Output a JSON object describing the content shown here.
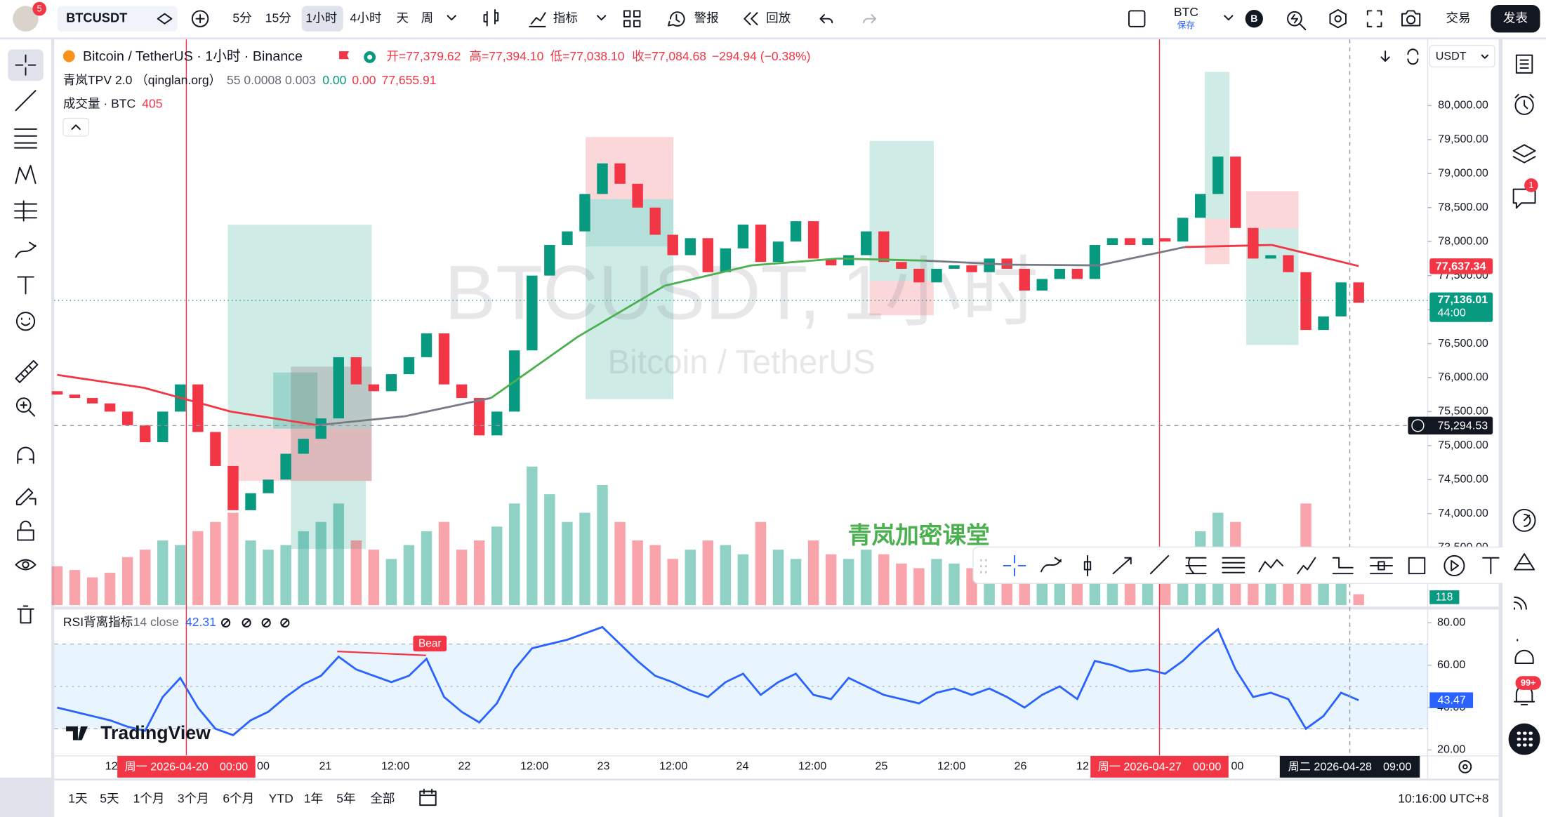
{
  "top_bar": {
    "avatar_badge": "5",
    "symbol": "BTCUSDT",
    "intervals": [
      "5分",
      "15分",
      "1小时",
      "4小时",
      "天",
      "周"
    ],
    "indicators": "指标",
    "alerts": "警报",
    "replay": "回放",
    "save_name": "BTC",
    "save_status": "保存",
    "account_badge": "B",
    "trade": "交易",
    "publish": "发表"
  },
  "legend": {
    "symbol": "Bitcoin / TetherUS · 1小时 · Binance",
    "ohlc": [
      "开=77,379.62",
      "高=77,394.10",
      "低=77,038.10",
      "收=77,084.68",
      "−294.94 (−0.38%)"
    ],
    "indicator": "青岚TPV 2.0 （qinglan.org）",
    "indicator_params": "55 0.0008 0.003",
    "indicator_values": [
      "0.00",
      "0.00",
      "77,655.91"
    ],
    "volume": "成交量 · BTC",
    "volume_value": "405"
  },
  "chart_controls": {
    "currency": "USDT"
  },
  "watermark": {
    "title": "BTCUSDT, 1小时",
    "subtitle": "Bitcoin / TetherUS"
  },
  "annotation": "青岚加密课堂",
  "chart_data": {
    "type": "candlestick",
    "open": 75800,
    "close": [
      75750,
      75700,
      75620,
      75500,
      75300,
      75050,
      75500,
      75900,
      75200,
      74700,
      74050,
      74300,
      74500,
      74880,
      75100,
      75400,
      76300,
      75900,
      75800,
      76050,
      76300,
      76650,
      75900,
      75700,
      75150,
      75500,
      76400,
      77500,
      77950,
      78150,
      78700,
      79150,
      78850,
      78500,
      78100,
      77800,
      78050,
      77550,
      77900,
      78250,
      77700,
      78000,
      78300,
      77750,
      77650,
      77800,
      78150,
      77700,
      77600,
      77400,
      77600,
      77650,
      77550,
      77750,
      77600,
      77280,
      77450,
      77600,
      77450,
      77950,
      78050,
      77950,
      78050,
      78000,
      78350,
      78700,
      79250,
      78200,
      77750,
      77800,
      77550,
      76700,
      76900,
      77400,
      77100
    ],
    "up_color": "#089981",
    "down_color": "#f23645",
    "ylim": [
      72640,
      80900
    ],
    "yticks": [
      {
        "value": 73500,
        "label": "73,500.00"
      },
      {
        "value": 74000,
        "label": "74,000.00"
      },
      {
        "value": 74500,
        "label": "74,500.00"
      },
      {
        "value": 75000,
        "label": "75,000.00"
      },
      {
        "value": 75500,
        "label": "75,500.00"
      },
      {
        "value": 76000,
        "label": "76,000.00"
      },
      {
        "value": 76500,
        "label": "76,500.00"
      },
      {
        "value": 77000,
        "label": "77,000.00"
      },
      {
        "value": 77500,
        "label": "77,500.00"
      },
      {
        "value": 78000,
        "label": "78,000.00"
      },
      {
        "value": 78500,
        "label": "78,500.00"
      },
      {
        "value": 79000,
        "label": "79,000.00"
      },
      {
        "value": 79500,
        "label": "79,500.00"
      },
      {
        "value": 80000,
        "label": "80,000.00"
      }
    ],
    "ma": {
      "values": [
        76040,
        75850,
        75500,
        75300,
        75430,
        75700,
        76600,
        77350,
        77650,
        77750,
        77720,
        77660,
        77650,
        77920,
        77950,
        77640
      ],
      "colors": [
        "#f23645",
        "#f23645",
        "#f23645",
        "#787b86",
        "#787b86",
        "#4caf50",
        "#4caf50",
        "#4caf50",
        "#4caf50",
        "#4caf50",
        "#787b86",
        "#787b86",
        "#787b86",
        "#f23645",
        "#f23645"
      ]
    },
    "volume": [
      420,
      380,
      300,
      350,
      520,
      600,
      700,
      650,
      800,
      900,
      1000,
      700,
      600,
      650,
      800,
      900,
      1100,
      700,
      600,
      500,
      650,
      800,
      900,
      600,
      700,
      850,
      1100,
      1500,
      1200,
      900,
      1000,
      1300,
      900,
      700,
      650,
      500,
      600,
      700,
      650,
      550,
      900,
      600,
      500,
      700,
      550,
      500,
      600,
      550,
      450,
      400,
      500,
      450,
      400,
      420,
      380,
      500,
      420,
      380,
      450,
      600,
      500,
      450,
      420,
      400,
      550,
      800,
      1000,
      900,
      600,
      450,
      500,
      1100,
      600,
      450,
      118
    ],
    "volume_tag": {
      "value": 118,
      "label": "118"
    },
    "ma_tag": {
      "value": 77637.34,
      "label": "77,637.34"
    },
    "last_price_tag": {
      "value": 77136.01,
      "label": "77,136.01"
    },
    "countdown": "44:00",
    "crosshair_tag": {
      "value": 75294.53,
      "label": "75,294.53"
    },
    "rsi": {
      "title": "RSI背离指标",
      "params": "14 close",
      "value": "42.31",
      "color": "#2962ff",
      "band": [
        30,
        70
      ],
      "ylim": [
        15.8,
        86.5
      ],
      "yticks": [
        {
          "value": 80,
          "label": "80.00"
        },
        {
          "value": 60,
          "label": "60.00"
        },
        {
          "value": 40,
          "label": "40.00"
        },
        {
          "value": 20,
          "label": "20.00"
        }
      ],
      "values": [
        40,
        38,
        36,
        34,
        31,
        29,
        45,
        54,
        40,
        30,
        27,
        34,
        38,
        45,
        51,
        55,
        64,
        58,
        55,
        52,
        55,
        63,
        45,
        38,
        33,
        42,
        58,
        68,
        70,
        72,
        75,
        78,
        70,
        62,
        55,
        52,
        48,
        45,
        52,
        56,
        46,
        52,
        56,
        46,
        44,
        54,
        50,
        46,
        44,
        42,
        47,
        49,
        46,
        49,
        45,
        40,
        46,
        50,
        44,
        62,
        60,
        57,
        58,
        56,
        62,
        70,
        77,
        58,
        45,
        47,
        44,
        30,
        36,
        47,
        43.47
      ],
      "last_tag": {
        "value": 43.47,
        "label": "43.47"
      },
      "signal": "Bear"
    },
    "x_labels": [
      "12",
      "00",
      "21",
      "12:00",
      "22",
      "12:00",
      "23",
      "12:00",
      "24",
      "12:00",
      "25",
      "12:00",
      "26",
      "12",
      "00"
    ],
    "time_tags": [
      "周一 2026-04-20　00:00",
      "周一 2026-04-27　00:00",
      "周二 2026-04-28　09:00"
    ]
  },
  "logo": "TradingView",
  "bottom_bar": {
    "ranges": [
      "1天",
      "5天",
      "1个月",
      "3个月",
      "6个月",
      "YTD",
      "1年",
      "5年",
      "全部"
    ],
    "clock": "10:16:00 UTC+8"
  },
  "right_toolbar": {
    "chat_badge": "1",
    "notification_badge": "99+"
  }
}
